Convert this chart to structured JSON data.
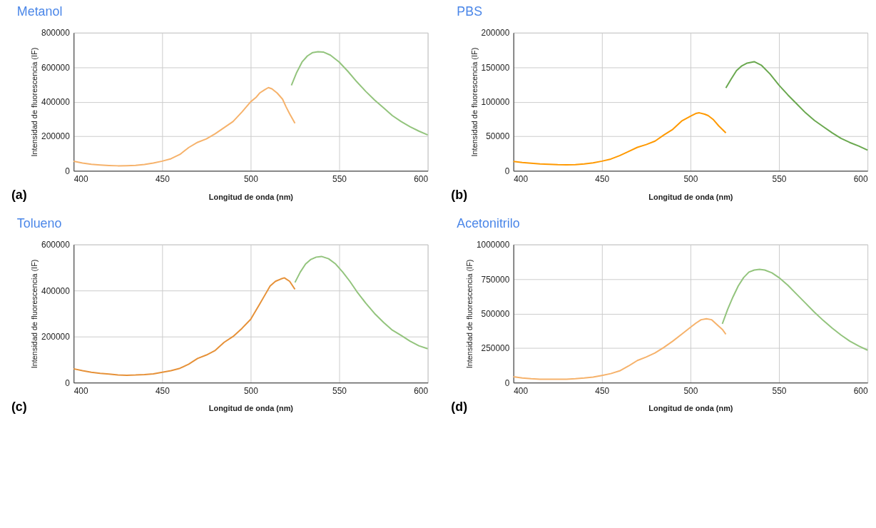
{
  "chart_data": [
    {
      "type": "line",
      "title": "Metanol",
      "xlabel": "Longitud de onda (nm)",
      "ylabel": "Intensidad de fluorescencia (IF)",
      "xlim": [
        400,
        600
      ],
      "xticks": [
        400,
        450,
        500,
        550,
        600
      ],
      "ylim": [
        0,
        800000
      ],
      "yticks": [
        0,
        200000,
        400000,
        600000,
        800000
      ],
      "grid": true,
      "annotations": [
        "(a)"
      ],
      "series": [
        {
          "color": "#f6b26b",
          "x": [
            400,
            405,
            410,
            415,
            420,
            425,
            430,
            435,
            440,
            445,
            450,
            455,
            460,
            465,
            470,
            475,
            480,
            485,
            490,
            495,
            500,
            503,
            505,
            508,
            510,
            512,
            515,
            518,
            520,
            522,
            525
          ],
          "values": [
            55000,
            45000,
            38000,
            34000,
            31000,
            29000,
            30000,
            32000,
            37000,
            45000,
            56000,
            70000,
            95000,
            135000,
            165000,
            185000,
            215000,
            250000,
            285000,
            340000,
            400000,
            425000,
            450000,
            470000,
            482000,
            475000,
            450000,
            415000,
            370000,
            330000,
            275000
          ]
        },
        {
          "color": "#93c47d",
          "x": [
            523,
            526,
            529,
            532,
            535,
            538,
            541,
            545,
            550,
            555,
            560,
            565,
            570,
            575,
            580,
            585,
            590,
            595,
            600
          ],
          "values": [
            495000,
            570000,
            630000,
            665000,
            685000,
            690000,
            688000,
            670000,
            630000,
            575000,
            515000,
            460000,
            410000,
            365000,
            320000,
            285000,
            255000,
            230000,
            208000
          ]
        }
      ]
    },
    {
      "type": "line",
      "title": "PBS",
      "xlabel": "Longitud de onda (nm)",
      "ylabel": "Intensidad de fluorescencia (IF)",
      "xlim": [
        400,
        600
      ],
      "xticks": [
        400,
        450,
        500,
        550,
        600
      ],
      "ylim": [
        0,
        200000
      ],
      "yticks": [
        0,
        50000,
        100000,
        150000,
        200000
      ],
      "grid": true,
      "annotations": [
        "(b)"
      ],
      "series": [
        {
          "color": "#ff9900",
          "x": [
            400,
            405,
            410,
            415,
            420,
            425,
            430,
            435,
            440,
            445,
            450,
            455,
            460,
            465,
            470,
            475,
            480,
            485,
            490,
            495,
            500,
            503,
            505,
            508,
            510,
            513,
            516,
            520
          ],
          "values": [
            13500,
            12000,
            11000,
            10000,
            9500,
            9000,
            8800,
            9000,
            10000,
            11500,
            14000,
            17000,
            22000,
            28000,
            34000,
            38000,
            43000,
            52000,
            60000,
            72000,
            79000,
            83000,
            84000,
            82000,
            80000,
            74000,
            65000,
            55000
          ]
        },
        {
          "color": "#6aa84f",
          "x": [
            520,
            523,
            526,
            529,
            532,
            536,
            540,
            545,
            550,
            555,
            560,
            565,
            570,
            575,
            580,
            585,
            590,
            595,
            600
          ],
          "values": [
            120000,
            133000,
            145000,
            152000,
            156000,
            158000,
            153000,
            140000,
            124000,
            110000,
            97000,
            84000,
            73000,
            64000,
            55000,
            47000,
            41000,
            36000,
            30000
          ]
        }
      ]
    },
    {
      "type": "line",
      "title": "Tolueno",
      "xlabel": "Longitud de onda (nm)",
      "ylabel": "Intensidad de fluorescencia (IF)",
      "xlim": [
        400,
        600
      ],
      "xticks": [
        400,
        450,
        500,
        550,
        600
      ],
      "ylim": [
        0,
        600000
      ],
      "yticks": [
        0,
        200000,
        400000,
        600000
      ],
      "grid": true,
      "annotations": [
        "(c)"
      ],
      "series": [
        {
          "color": "#e69138",
          "x": [
            400,
            405,
            410,
            415,
            420,
            425,
            430,
            435,
            440,
            445,
            450,
            455,
            460,
            465,
            470,
            475,
            480,
            485,
            490,
            495,
            500,
            505,
            508,
            511,
            514,
            517,
            519,
            522,
            525
          ],
          "values": [
            60000,
            52000,
            45000,
            40000,
            37000,
            33000,
            32000,
            33000,
            35000,
            38000,
            45000,
            52000,
            62000,
            80000,
            105000,
            120000,
            140000,
            175000,
            200000,
            235000,
            275000,
            340000,
            380000,
            420000,
            440000,
            450000,
            455000,
            440000,
            405000
          ]
        },
        {
          "color": "#93c47d",
          "x": [
            525,
            528,
            531,
            534,
            537,
            540,
            544,
            548,
            552,
            556,
            560,
            565,
            570,
            575,
            580,
            585,
            590,
            595,
            600
          ],
          "values": [
            435000,
            480000,
            515000,
            535000,
            545000,
            548000,
            538000,
            515000,
            480000,
            440000,
            395000,
            345000,
            300000,
            262000,
            228000,
            205000,
            180000,
            160000,
            147000
          ]
        }
      ]
    },
    {
      "type": "line",
      "title": "Acetonitrilo",
      "xlabel": "Longitud de onda (nm)",
      "ylabel": "Intensidad de fluorescencia (IF)",
      "xlim": [
        400,
        600
      ],
      "xticks": [
        400,
        450,
        500,
        550,
        600
      ],
      "ylim": [
        0,
        1000000
      ],
      "yticks": [
        0,
        250000,
        500000,
        750000,
        1000000
      ],
      "grid": true,
      "annotations": [
        "(d)"
      ],
      "series": [
        {
          "color": "#f6b26b",
          "x": [
            400,
            405,
            410,
            415,
            420,
            425,
            430,
            435,
            440,
            445,
            450,
            455,
            460,
            465,
            470,
            475,
            480,
            485,
            490,
            495,
            500,
            503,
            506,
            509,
            512,
            515,
            518,
            520
          ],
          "values": [
            42000,
            33000,
            28000,
            25000,
            24000,
            24000,
            25000,
            28000,
            33000,
            40000,
            52000,
            65000,
            85000,
            120000,
            160000,
            185000,
            215000,
            255000,
            300000,
            350000,
            400000,
            430000,
            455000,
            462000,
            455000,
            420000,
            385000,
            350000
          ]
        },
        {
          "color": "#93c47d",
          "x": [
            518,
            521,
            524,
            527,
            530,
            533,
            536,
            539,
            542,
            546,
            550,
            555,
            560,
            565,
            570,
            575,
            580,
            585,
            590,
            595,
            600
          ],
          "values": [
            425000,
            530000,
            620000,
            700000,
            760000,
            800000,
            815000,
            820000,
            815000,
            795000,
            760000,
            705000,
            640000,
            575000,
            510000,
            450000,
            395000,
            345000,
            300000,
            265000,
            235000
          ]
        }
      ]
    }
  ]
}
